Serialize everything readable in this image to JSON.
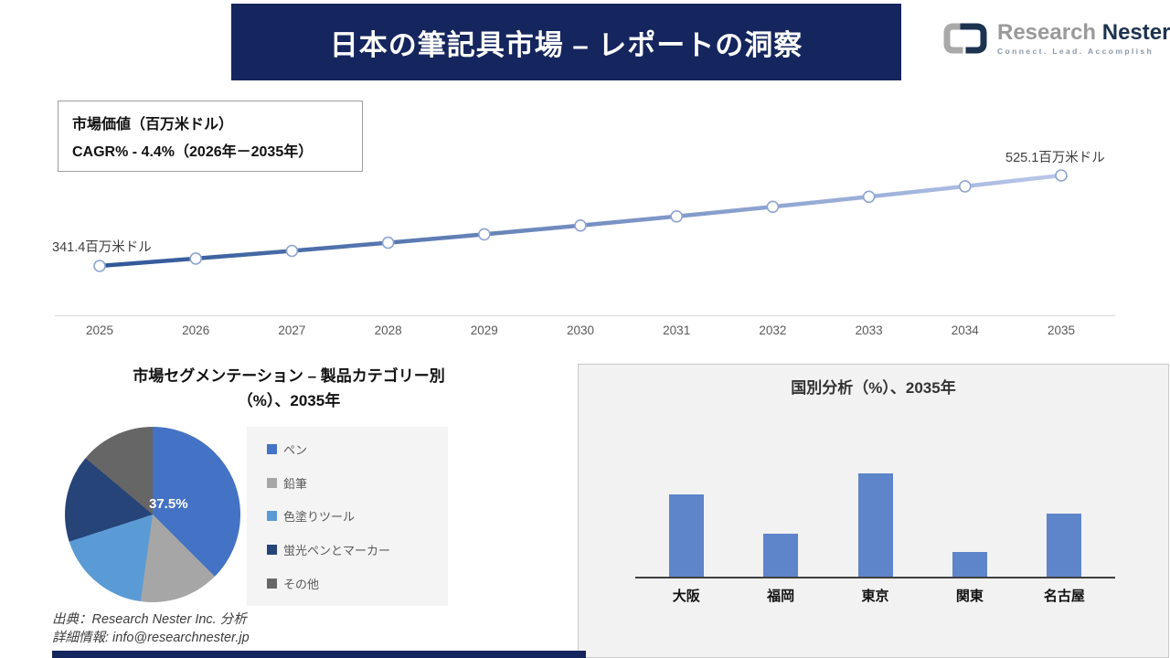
{
  "header": {
    "title": "日本の筆記具市場 – レポートの洞察",
    "logo": {
      "name_part1": "Research",
      "name_part2": "Nester",
      "tagline": "Connect. Lead. Accomplish"
    }
  },
  "info_box": {
    "line1": "市場価値（百万米ドル）",
    "line2": "CAGR% - 4.4%（2026年－2035年）"
  },
  "left_panel": {
    "title_line1": "市場セグメンテーション – 製品カテゴリー別",
    "title_line2": "（%）、2035年"
  },
  "source": {
    "line1": "出典：Research Nester Inc. 分析",
    "line2": "詳細情報: info@researchnester.jp"
  },
  "colors": {
    "navy": "#15255d",
    "line_gradient_start": "#2e5597",
    "line_gradient_end": "#b9c7ea",
    "marker_stroke": "#8ea4d2",
    "axis_gray": "#d9d9d9",
    "bar_blue": "#5e84ca"
  },
  "chart_data": [
    {
      "type": "line",
      "title": "市場価値（百万米ドル）",
      "x": [
        2025,
        2026,
        2027,
        2028,
        2029,
        2030,
        2031,
        2032,
        2033,
        2034,
        2035
      ],
      "values": [
        341.4,
        356.4,
        372.1,
        388.5,
        405.6,
        423.4,
        442.0,
        461.5,
        481.8,
        503.0,
        525.1
      ],
      "start_label": "341.4百万米ドル",
      "end_label": "525.1百万米ドル",
      "ylim": [
        320,
        545
      ],
      "grid": false,
      "colors": [
        "#2e5597",
        "#b9c7ea"
      ]
    },
    {
      "type": "pie",
      "title": "市場セグメンテーション – 製品カテゴリー別（%）、2035年",
      "labels": [
        "ペン",
        "鉛筆",
        "色塗りツール",
        "蛍光ペンとマーカー",
        "その他"
      ],
      "values": [
        37.5,
        14.7,
        17.8,
        16.1,
        13.9
      ],
      "colors": [
        "#4472c4",
        "#a6a6a6",
        "#5b9bd5",
        "#264478",
        "#666666"
      ],
      "center_label": "37.5%",
      "legend_position": "right"
    },
    {
      "type": "bar",
      "title": "国別分析（%）、2035年",
      "categories": [
        "大阪",
        "福岡",
        "東京",
        "関東",
        "名古屋"
      ],
      "values": [
        28,
        14.5,
        35,
        8.5,
        21.5
      ],
      "xlabel": "",
      "ylabel": "",
      "ylim": [
        0,
        35
      ],
      "grid": false,
      "bar_color": "#5e84ca"
    }
  ]
}
